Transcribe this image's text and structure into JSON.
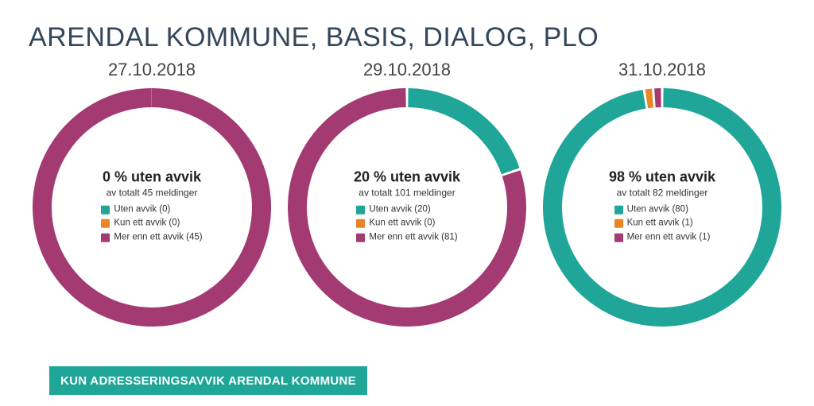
{
  "title": "ARENDAL KOMMUNE, BASIS, DIALOG, PLO",
  "footer": {
    "text": "KUN ADRESSERINGSAVVIK ARENDAL KOMMUNE",
    "bg": "#1fa698"
  },
  "colors": {
    "uten": "#1fa698",
    "kun_ett": "#e98427",
    "mer_enn_ett": "#a33a72",
    "title": "#33465a"
  },
  "chart_common": {
    "type": "donut",
    "outer_r": 150,
    "inner_r": 126,
    "size": 300,
    "start_angle_deg": 0,
    "gap_deg": 1.2
  },
  "legend_labels": {
    "uten": "Uten avvik",
    "kun_ett": "Kun ett avvik",
    "mer_enn_ett": "Mer enn ett avvik"
  },
  "charts": [
    {
      "date": "27.10.2018",
      "headline": "0 % uten avvik",
      "subline": "av totalt 45 meldinger",
      "values": {
        "uten": 0,
        "kun_ett": 0,
        "mer_enn_ett": 45
      }
    },
    {
      "date": "29.10.2018",
      "headline": "20 % uten avvik",
      "subline": "av totalt 101 meldinger",
      "values": {
        "uten": 20,
        "kun_ett": 0,
        "mer_enn_ett": 81
      }
    },
    {
      "date": "31.10.2018",
      "headline": "98 % uten avvik",
      "subline": "av totalt 82 meldinger",
      "values": {
        "uten": 80,
        "kun_ett": 1,
        "mer_enn_ett": 1
      }
    }
  ]
}
